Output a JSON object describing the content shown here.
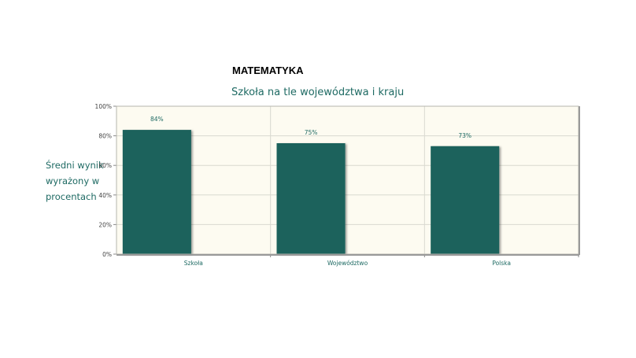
{
  "page": {
    "heading": "MATEMATYKA"
  },
  "chart_data": {
    "type": "bar",
    "title": "Szkoła na tle województwa i kraju",
    "ylabel_lines": [
      "Średni wynik",
      "wyrażony w",
      "procentach"
    ],
    "xlabel": "",
    "categories": [
      "Szkoła",
      "Województwo",
      "Polska"
    ],
    "values": [
      84,
      75,
      73
    ],
    "data_labels": [
      "84%",
      "75%",
      "73%"
    ],
    "ylim": [
      0,
      100
    ],
    "yticks": [
      0,
      20,
      40,
      60,
      80,
      100
    ],
    "ytick_labels": [
      "0%",
      "20%",
      "40%",
      "60%",
      "80%",
      "100%"
    ],
    "grid": true,
    "legend": "none",
    "colors": {
      "bar": "#1f625c",
      "plot_background": "#fdfbf1",
      "grid": "#d9d9d0",
      "text": "#1e6a63"
    }
  }
}
